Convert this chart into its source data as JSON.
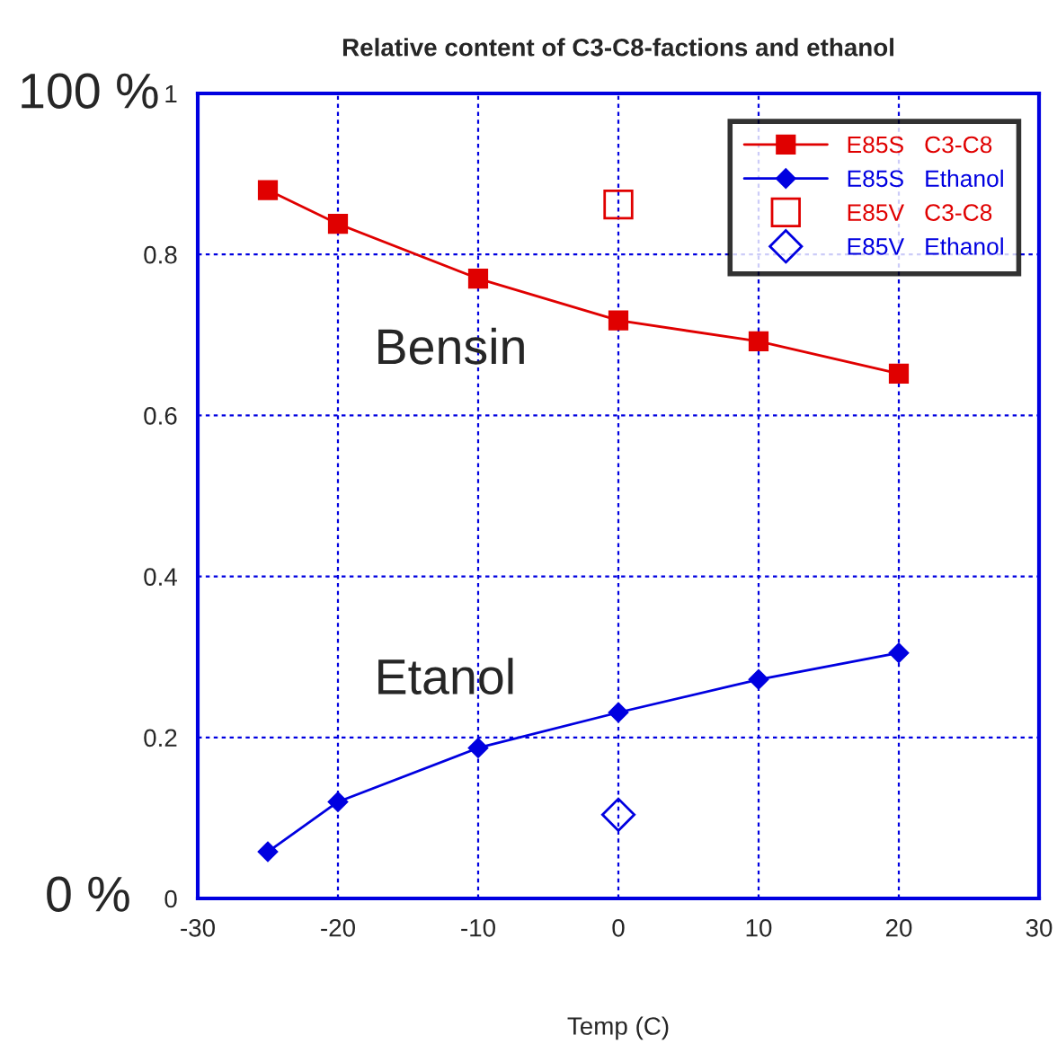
{
  "chart_data": {
    "type": "line",
    "title": "Relative content of C3-C8-factions and ethanol",
    "xlabel": "Temp (C)",
    "xlim": [
      -30,
      30
    ],
    "xticks": [
      -30,
      -20,
      -10,
      0,
      10,
      20,
      30
    ],
    "ylim": [
      0,
      1
    ],
    "yticks": [
      0,
      0.2,
      0.4,
      0.6,
      0.8,
      1
    ],
    "grid": true,
    "legend": "top right",
    "series": [
      {
        "name": "E85S   C3-C8",
        "marker": "square",
        "color": "#e00000",
        "x": [
          -25,
          -20,
          -10,
          0,
          10,
          20
        ],
        "values": [
          0.88,
          0.838,
          0.77,
          0.718,
          0.692,
          0.652
        ]
      },
      {
        "name": "E85S   Ethanol",
        "marker": "diamond",
        "color": "#0000e0",
        "x": [
          -25,
          -20,
          -10,
          0,
          10,
          20
        ],
        "values": [
          0.058,
          0.12,
          0.187,
          0.231,
          0.272,
          0.305
        ]
      },
      {
        "name": "E85V   C3-C8",
        "type": "scatter",
        "marker": "square",
        "color": "#e00000",
        "x": [
          0
        ],
        "values": [
          0.862
        ]
      },
      {
        "name": "E85V   Ethanol",
        "type": "scatter",
        "marker": "diamond",
        "color": "#0000e0",
        "x": [
          0
        ],
        "values": [
          0.104
        ]
      }
    ],
    "annotations": [
      "Bensin",
      "Etanol",
      "100 %",
      "0 %"
    ]
  }
}
